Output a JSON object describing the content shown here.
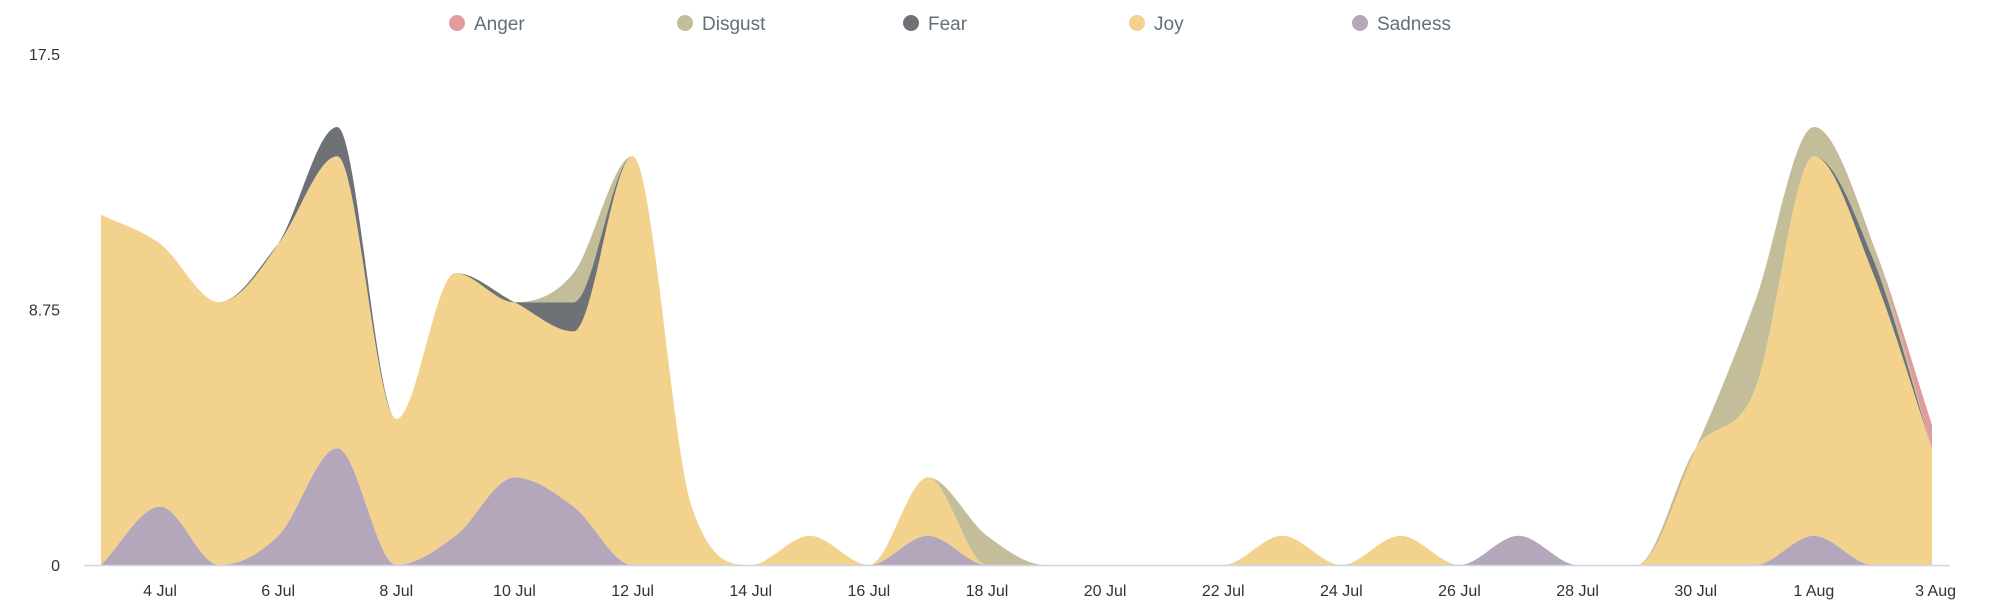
{
  "chart_data": {
    "type": "area",
    "stacked": true,
    "smoothing": "spline",
    "legend_position": "top",
    "grid": false,
    "ylim": [
      0,
      17.5
    ],
    "yticks": [
      "0",
      "8.75",
      "17.5"
    ],
    "xtick_labels": [
      "4 Jul",
      "6 Jul",
      "8 Jul",
      "10 Jul",
      "12 Jul",
      "14 Jul",
      "16 Jul",
      "18 Jul",
      "20 Jul",
      "22 Jul",
      "24 Jul",
      "26 Jul",
      "28 Jul",
      "30 Jul",
      "1 Aug",
      "3 Aug"
    ],
    "x": [
      "3 Jul",
      "4 Jul",
      "5 Jul",
      "6 Jul",
      "7 Jul",
      "8 Jul",
      "9 Jul",
      "10 Jul",
      "11 Jul",
      "12 Jul",
      "13 Jul",
      "14 Jul",
      "15 Jul",
      "16 Jul",
      "17 Jul",
      "18 Jul",
      "19 Jul",
      "20 Jul",
      "21 Jul",
      "22 Jul",
      "23 Jul",
      "24 Jul",
      "25 Jul",
      "26 Jul",
      "27 Jul",
      "28 Jul",
      "29 Jul",
      "30 Jul",
      "31 Jul",
      "1 Aug",
      "2 Aug",
      "3 Aug"
    ],
    "series": [
      {
        "name": "Sadness",
        "color": "#b4a7bb",
        "values": [
          0,
          2,
          0,
          1,
          4,
          0,
          1,
          3,
          2,
          0,
          0,
          0,
          0,
          0,
          1,
          0,
          0,
          0,
          0,
          0,
          0,
          0,
          0,
          0,
          1,
          0,
          0,
          0,
          0,
          1,
          0,
          0
        ]
      },
      {
        "name": "Joy",
        "color": "#f2d28c",
        "values": [
          12,
          9,
          9,
          10,
          10,
          5,
          9,
          6,
          6,
          14,
          2,
          0,
          1,
          0,
          2,
          0,
          0,
          0,
          0,
          0,
          1,
          0,
          1,
          0,
          0,
          0,
          0,
          4,
          6,
          13,
          10,
          4
        ]
      },
      {
        "name": "Fear",
        "color": "#6e7277",
        "values": [
          0,
          0,
          0,
          0,
          1,
          0,
          0,
          0,
          1,
          0,
          0,
          0,
          0,
          0,
          0,
          0,
          0,
          0,
          0,
          0,
          0,
          0,
          0,
          0,
          0,
          0,
          0,
          0,
          0,
          0,
          0.5,
          0
        ]
      },
      {
        "name": "Disgust",
        "color": "#c3bd99",
        "values": [
          0,
          0,
          0,
          0,
          0,
          0,
          0,
          0,
          1,
          0,
          0,
          0,
          0,
          0,
          0,
          1,
          0,
          0,
          0,
          0,
          0,
          0,
          0,
          0,
          0,
          0,
          0,
          0,
          3,
          1,
          0.5,
          0
        ]
      },
      {
        "name": "Anger",
        "color": "#e09c9c",
        "values": [
          0,
          0,
          0,
          0,
          0,
          0,
          0,
          0,
          0,
          0,
          0,
          0,
          0,
          0,
          0,
          0,
          0,
          0,
          0,
          0,
          0,
          0,
          0,
          0,
          0,
          0,
          0,
          0,
          0,
          0,
          0,
          0.8
        ]
      }
    ],
    "legend": [
      {
        "name": "Anger",
        "color": "#e09c9c"
      },
      {
        "name": "Disgust",
        "color": "#c3bd99"
      },
      {
        "name": "Fear",
        "color": "#6e7277"
      },
      {
        "name": "Joy",
        "color": "#f2d28c"
      },
      {
        "name": "Sadness",
        "color": "#b4a7bb"
      }
    ],
    "axis_color": "#ccd6eb"
  }
}
